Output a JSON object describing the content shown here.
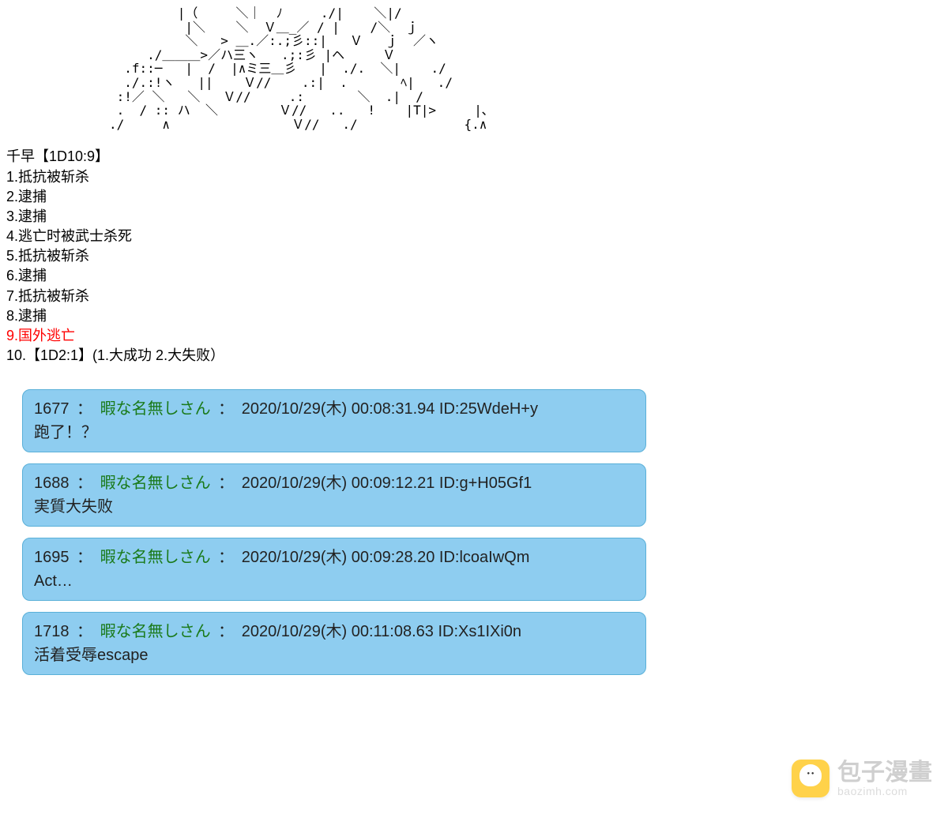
{
  "asciiArt": "         |（     ＼｜  ﾉ     ./|    ＼|/\n          |＼    ＼  Ｖ＿_／ / |    /＼  ｊ\n          ＼   > ＿.／:.;彡::|   Ｖ   ｊ  ／ヽ\n     ./＿＿＿>／ハ三ヽ   .;:彡 |ヘ     Ｖ\n  .f::─   |  /  |∧ミ三＿彡   |  ./.  ＼|    ./\n  ./.:!ヽ   ||    Ｖ//    .:|  .       ﾍ|   ./\n :!／ ＼   ＼   Ｖ//     .:       ＼  .|  /\n .  / :: ハ  ＼        Ｖ//   ..   !    |T|>     |､\n./     ∧                Ｖ//   ./              {.∧",
  "roll": {
    "title": "千早【1D10:9】",
    "items": [
      {
        "n": "1",
        "text": "抵抗被斩杀",
        "red": false
      },
      {
        "n": "2",
        "text": "逮捕",
        "red": false
      },
      {
        "n": "3",
        "text": "逮捕",
        "red": false
      },
      {
        "n": "4",
        "text": "逃亡时被武士杀死",
        "red": false
      },
      {
        "n": "5",
        "text": "抵抗被斩杀",
        "red": false
      },
      {
        "n": "6",
        "text": "逮捕",
        "red": false
      },
      {
        "n": "7",
        "text": "抵抗被斩杀",
        "red": false
      },
      {
        "n": "8",
        "text": "逮捕",
        "red": false
      },
      {
        "n": "9",
        "text": "国外逃亡",
        "red": true
      }
    ],
    "last": "10.【1D2:1】(1.大成功   2.大失败）"
  },
  "comments": [
    {
      "num": "1677",
      "user": "暇な名無しさん",
      "meta": "2020/10/29(木) 00:08:31.94 ID:25WdeH+y",
      "body": "跑了！？"
    },
    {
      "num": "1688",
      "user": "暇な名無しさん",
      "meta": "2020/10/29(木) 00:09:12.21 ID:g+H05Gf1",
      "body": "実質大失败"
    },
    {
      "num": "1695",
      "user": "暇な名無しさん",
      "meta": "2020/10/29(木) 00:09:28.20 ID:lcoaIwQm",
      "body": "Act…"
    },
    {
      "num": "1718",
      "user": "暇な名無しさん",
      "meta": "2020/10/29(木) 00:11:08.63 ID:Xs1IXi0n",
      "body": "活着受辱escape"
    }
  ],
  "watermark": {
    "cn": "包子漫畫",
    "url": "baozimh.com"
  },
  "colon": "："
}
